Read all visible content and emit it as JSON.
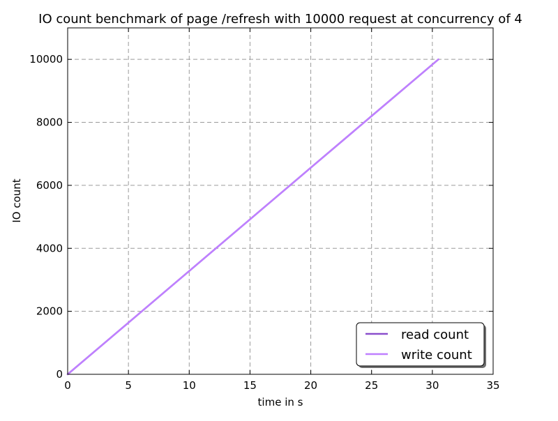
{
  "chart_data": {
    "type": "line",
    "title": "IO count benchmark of page /refresh with 10000 request at concurrency of 4",
    "xlabel": "time in s",
    "ylabel": "IO count",
    "xlim": [
      0,
      35
    ],
    "ylim": [
      0,
      11000
    ],
    "xticks": [
      0,
      5,
      10,
      15,
      20,
      25,
      30,
      35
    ],
    "yticks": [
      0,
      2000,
      4000,
      6000,
      8000,
      10000
    ],
    "grid": true,
    "legend_position": "lower-right",
    "series": [
      {
        "name": "read count",
        "color": "#8a4fcc",
        "x": [
          0,
          5,
          10,
          15,
          20,
          25,
          30.5
        ],
        "y": [
          0,
          1640,
          3280,
          4920,
          6560,
          8200,
          10000
        ]
      },
      {
        "name": "write count",
        "color": "#bf80ff",
        "x": [
          0,
          5,
          10,
          15,
          20,
          25,
          30.5
        ],
        "y": [
          0,
          1640,
          3280,
          4920,
          6560,
          8200,
          10000
        ]
      }
    ]
  }
}
